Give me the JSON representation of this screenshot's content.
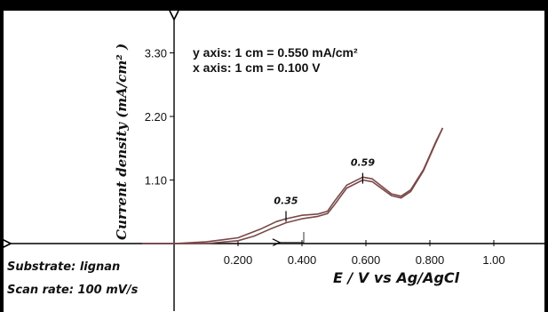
{
  "chart_data": {
    "type": "line",
    "title": "",
    "ylabel": "Current density (mA/cm² )",
    "xlabel": "E / V vs Ag/AgCl",
    "xlim": [
      -0.1,
      1.15
    ],
    "ylim": [
      -0.3,
      3.4
    ],
    "x_ticks": [
      0.2,
      0.4,
      0.6,
      0.8,
      1.0
    ],
    "x_tick_labels": [
      "0.200",
      "0.400",
      "0.600",
      "0.800",
      "1.00"
    ],
    "y_ticks": [
      1.1,
      2.2,
      3.3
    ],
    "y_tick_labels": [
      "1.10",
      "2.20",
      "3.30"
    ],
    "notes": [
      "y axis: 1 cm = 0.550 mA/cm²",
      "x axis: 1 cm = 0.100 V"
    ],
    "annotations": [
      {
        "text": "0.59",
        "x": 0.59,
        "y": 1.13
      },
      {
        "text": "0.35",
        "x": 0.35,
        "y": 0.47
      }
    ],
    "info": [
      "Substrate: lignan",
      "Scan rate: 100 mV/s"
    ],
    "series": [
      {
        "x": [
          -0.1,
          0.0,
          0.1,
          0.2,
          0.27,
          0.32,
          0.35,
          0.4,
          0.45,
          0.48,
          0.5,
          0.54,
          0.59,
          0.62,
          0.65,
          0.68,
          0.71,
          0.74,
          0.78,
          0.82,
          0.84
        ],
        "y": [
          0.0,
          0.0,
          0.03,
          0.1,
          0.25,
          0.38,
          0.43,
          0.49,
          0.51,
          0.56,
          0.72,
          1.01,
          1.15,
          1.12,
          0.99,
          0.86,
          0.82,
          0.93,
          1.28,
          1.78,
          2.0
        ]
      },
      {
        "x": [
          0.84,
          0.82,
          0.78,
          0.74,
          0.71,
          0.68,
          0.65,
          0.62,
          0.59,
          0.54,
          0.5,
          0.48,
          0.45,
          0.4,
          0.35,
          0.3,
          0.25,
          0.2,
          0.1,
          0.0,
          -0.1
        ],
        "y": [
          2.0,
          1.76,
          1.26,
          0.9,
          0.79,
          0.83,
          0.95,
          1.07,
          1.1,
          0.96,
          0.66,
          0.52,
          0.47,
          0.43,
          0.36,
          0.25,
          0.13,
          0.05,
          0.0,
          0.0,
          0.0
        ]
      }
    ],
    "colors": {
      "curve": "#7a4848",
      "axis": "#000000",
      "text": "#111111"
    }
  }
}
